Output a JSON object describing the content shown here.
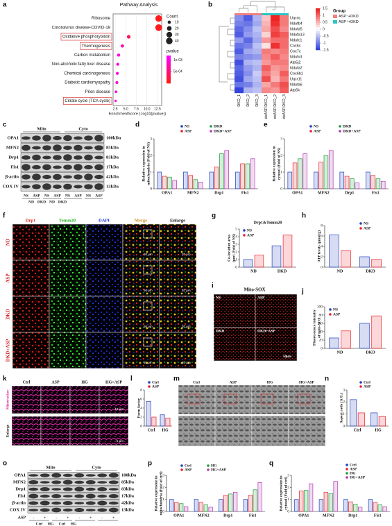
{
  "chart_data": [
    {
      "type": "dot",
      "title": "Pathway Analysis",
      "categories": [
        "Ribosome",
        "Coronavirus disease-COVID-19",
        "Oxidative phosphorylation",
        "Thermogenesis",
        "Carbon metabolism",
        "Non-alcoholic fatty liver disease",
        "Chemical carcinogenesis",
        "Diabetic cardiomyopathy",
        "Prion disease",
        "Citrate cycle (TCA cycle)"
      ],
      "values": [
        12.8,
        12.8,
        5.7,
        4.2,
        3.3,
        3.1,
        3.0,
        2.9,
        2.7,
        2.6
      ],
      "counts": [
        40,
        42,
        12,
        10,
        9,
        8,
        8,
        8,
        6,
        5
      ],
      "pvalues": [
        2e-05,
        2e-05,
        0.0003,
        0.0008,
        0.001,
        0.001,
        0.001,
        0.001,
        0.001,
        0.0011
      ],
      "highlight": [
        2,
        3,
        9
      ],
      "xlabel": "EnrichmentScore (-log10(pvalue))",
      "xlim": [
        2,
        13.5
      ],
      "xticks": [
        2.5,
        {
          "value": 5,
          "label": "5.0"
        },
        7.5,
        {
          "value": 10,
          "label": "10.0"
        },
        12.5
      ],
      "size_title": "Count",
      "size_ticks": [
        10,
        20,
        30,
        40
      ],
      "color_title": "pvalue",
      "clim": [
        0,
        0.0012
      ],
      "colors": [
        "#ff1a1a",
        "#ff00ff"
      ],
      "cticks": [
        {
          "value": 0.001,
          "label": "1e-03"
        },
        {
          "value": 0.0005,
          "label": "5e-04"
        }
      ]
    },
    {
      "type": "heatmap",
      "rows": [
        "Uqcrq",
        "Ndufb4",
        "Ndufa5",
        "Ndufa13",
        "Ndufc1",
        "Cox6c",
        "Cox7c",
        "Ndufv3",
        "Atp5j2",
        "Ndufa2",
        "Cox6b1",
        "Uqcr11",
        "Ndufa6",
        "Atp5k"
      ],
      "columns": [
        "DKD_1",
        "DKD_2",
        "DKD_3",
        "dxASP.DKD_1",
        "dxASP.DKD_2",
        "dxASP.DKD_3"
      ],
      "values": [
        [
          -0.9,
          -1.3,
          -0.6,
          0.4,
          1.5,
          0.9
        ],
        [
          -1.0,
          -1.1,
          -0.7,
          0.5,
          1.4,
          0.9
        ],
        [
          -1.2,
          -0.9,
          -0.5,
          0.6,
          1.2,
          0.8
        ],
        [
          -1.3,
          -0.8,
          -0.6,
          0.3,
          1.3,
          1.1
        ],
        [
          -0.8,
          -1.2,
          -0.7,
          0.7,
          1.0,
          1.0
        ],
        [
          -1.1,
          -1.0,
          -0.5,
          0.2,
          1.4,
          1.0
        ],
        [
          -1.3,
          -0.7,
          -0.6,
          0.9,
          0.8,
          0.9
        ],
        [
          -1.0,
          -0.9,
          -0.8,
          0.8,
          1.1,
          0.8
        ],
        [
          -1.4,
          -0.6,
          -0.5,
          0.7,
          0.9,
          0.9
        ],
        [
          -1.2,
          -0.8,
          -0.6,
          1.1,
          0.7,
          0.8
        ],
        [
          -1.3,
          -0.9,
          -0.4,
          0.9,
          0.6,
          1.1
        ],
        [
          -1.4,
          -0.7,
          -0.5,
          1.2,
          0.5,
          0.9
        ],
        [
          -1.1,
          -1.0,
          -0.6,
          0.6,
          0.9,
          1.2
        ],
        [
          -1.5,
          -0.6,
          -0.5,
          0.8,
          0.7,
          1.1
        ]
      ],
      "clim": [
        -1.5,
        1.5
      ],
      "cticks": [
        1.5,
        1,
        0.5,
        0,
        -0.5,
        -1,
        -1.5
      ],
      "colors": [
        "#3344dd",
        "#ffffff",
        "#ee2222"
      ],
      "group_title": "Group",
      "groups": [
        {
          "name": "ASP⁻+DKD",
          "color": "#f08080"
        },
        {
          "name": "ASP⁺+DKD",
          "color": "#2ec4c4"
        }
      ],
      "column_groups": [
        0,
        0,
        0,
        1,
        1,
        1
      ]
    },
    {
      "type": "bar",
      "ylabel": [
        "Relative expression in",
        "mitochondria (Fold of NS)"
      ],
      "categories": [
        "OPA1",
        "MFN2",
        "Drp1",
        "Fis1"
      ],
      "series": [
        {
          "name": "NS",
          "color": "#1f3fbf",
          "values": [
            1,
            1,
            1,
            1
          ]
        },
        {
          "name": "ASP",
          "color": "#e8202a",
          "values": [
            0.75,
            0.8,
            1.3,
            1.5
          ]
        },
        {
          "name": "DKD",
          "color": "#1a9a3a",
          "values": [
            0.7,
            0.55,
            2.1,
            1.5
          ]
        },
        {
          "name": "DKD+ASP",
          "color": "#b03ab0",
          "values": [
            0.5,
            0.4,
            2.3,
            1.8
          ]
        }
      ],
      "ylim": [
        0,
        3
      ],
      "yticks": [
        0,
        1,
        2,
        3
      ]
    },
    {
      "type": "bar",
      "ylabel": [
        "Relative expression in",
        "cytosol (Fold of NS)"
      ],
      "categories": [
        "OPA1",
        "MFN2",
        "Drp1",
        "Fis1"
      ],
      "series": [
        {
          "name": "NS",
          "color": "#1f3fbf",
          "values": [
            1,
            1,
            1,
            1
          ]
        },
        {
          "name": "ASP",
          "color": "#e8202a",
          "values": [
            1.55,
            1.6,
            0.75,
            0.8
          ]
        },
        {
          "name": "DKD",
          "color": "#1a9a3a",
          "values": [
            1.8,
            2.0,
            0.6,
            0.6
          ]
        },
        {
          "name": "DKD+ASP",
          "color": "#b03ab0",
          "values": [
            2.1,
            2.3,
            0.35,
            0.45
          ]
        }
      ],
      "ylim": [
        0,
        3
      ],
      "yticks": [
        0,
        1,
        2,
        3
      ]
    },
    {
      "type": "bar",
      "title": "Drp1&Tomm20",
      "ylabel": [
        "Co-location area",
        "(μm², Fold of NS)"
      ],
      "categories": [
        "ND",
        "DKD"
      ],
      "series": [
        {
          "name": "NS",
          "color": "#1f3fbf",
          "values": [
            1,
            2.8
          ]
        },
        {
          "name": "ASP",
          "color": "#e8202a",
          "values": [
            1.6,
            4.2
          ]
        }
      ],
      "ylim": [
        0,
        5
      ],
      "yticks": [
        0,
        1,
        2,
        3,
        4,
        5
      ]
    },
    {
      "type": "bar",
      "ylabel": [
        "ATP levels (μmol/g)"
      ],
      "categories": [
        "ND",
        "DKD"
      ],
      "series": [
        {
          "name": "NS",
          "color": "#1f3fbf",
          "values": [
            6.2,
            2.0
          ]
        },
        {
          "name": "ASP",
          "color": "#e8202a",
          "values": [
            3.2,
            1.5
          ]
        }
      ],
      "ylim": [
        0,
        8
      ],
      "yticks": [
        0,
        2,
        4,
        6,
        8
      ]
    },
    {
      "type": "bar",
      "ylabel": [
        "Fluorescence intensity",
        "of mito-SOX"
      ],
      "categories": [
        "ND",
        "DKD"
      ],
      "series": [
        {
          "name": "NS",
          "color": "#1f3fbf",
          "values": [
            25,
            60
          ]
        },
        {
          "name": "ASP",
          "color": "#e8202a",
          "values": [
            42,
            78
          ]
        }
      ],
      "ylim": [
        0,
        100
      ],
      "yticks": [
        0,
        20,
        40,
        60,
        80,
        100
      ]
    },
    {
      "type": "bar",
      "ylabel": [
        "Form factor"
      ],
      "categories": [
        "Ctrl",
        "HG"
      ],
      "series": [
        {
          "name": "Ctrl",
          "color": "#1f3fbf",
          "values": [
            5.5,
            2.5
          ]
        },
        {
          "name": "ASP",
          "color": "#e8202a",
          "values": [
            2,
            1.8
          ]
        }
      ],
      "ylim": [
        0,
        8
      ],
      "yticks": [
        0,
        2,
        4,
        6,
        8
      ]
    },
    {
      "type": "bar",
      "ylabel": [
        "Aspect ratio (A.U.)"
      ],
      "categories": [
        "Ctrl",
        "HG"
      ],
      "series": [
        {
          "name": "Ctrl",
          "color": "#1f3fbf",
          "values": [
            2.2,
            1.1
          ]
        },
        {
          "name": "ASP",
          "color": "#e8202a",
          "values": [
            1.1,
            0.8
          ]
        }
      ],
      "ylim": [
        0,
        3
      ],
      "yticks": [
        0,
        1,
        2,
        3
      ]
    },
    {
      "type": "bar",
      "ylabel": [
        "Relative expression in",
        "mitochondria (Fold of ctrl)"
      ],
      "categories": [
        "OPA1",
        "MFN2",
        "Drp1",
        "Fis1"
      ],
      "series": [
        {
          "name": "Ctrl",
          "color": "#1f3fbf",
          "values": [
            1,
            1,
            1,
            1
          ]
        },
        {
          "name": "ASP",
          "color": "#e8202a",
          "values": [
            0.75,
            0.75,
            1.35,
            1.35
          ]
        },
        {
          "name": "HG",
          "color": "#1a9a3a",
          "values": [
            0.65,
            0.55,
            1.45,
            1.8
          ]
        },
        {
          "name": "HG+ASP",
          "color": "#b03ab0",
          "values": [
            0.4,
            0.35,
            1.6,
            2.4
          ]
        }
      ],
      "ylim": [
        0,
        3
      ],
      "yticks": [
        0,
        1,
        2,
        3
      ]
    },
    {
      "type": "bar",
      "ylabel": [
        "Relative expression in",
        "cytosol (Fold of ctrl)"
      ],
      "categories": [
        "OPA1",
        "MFN2",
        "Drp1",
        "Fis1"
      ],
      "series": [
        {
          "name": "Ctrl",
          "color": "#1f3fbf",
          "values": [
            1,
            1,
            1,
            1
          ]
        },
        {
          "name": "ASP",
          "color": "#e8202a",
          "values": [
            1.7,
            1.6,
            0.8,
            0.75
          ]
        },
        {
          "name": "HG",
          "color": "#1a9a3a",
          "values": [
            1.75,
            1.5,
            0.6,
            0.55
          ]
        },
        {
          "name": "HG+ASP",
          "color": "#b03ab0",
          "values": [
            2.3,
            2.5,
            0.35,
            0.4
          ]
        }
      ],
      "ylim": [
        0,
        3
      ],
      "yticks": [
        0,
        1,
        2,
        3
      ]
    }
  ],
  "figure": {
    "panel_letters": [
      "a",
      "b",
      "c",
      "d",
      "e",
      "f",
      "g",
      "h",
      "i",
      "j",
      "k",
      "l",
      "m",
      "n",
      "o",
      "p",
      "q"
    ],
    "blot_c": {
      "headers": [
        "Mito",
        "Cyto"
      ],
      "proteins": [
        "OPA1",
        "MFN2",
        "Drp1",
        "Fis1",
        "β-actin",
        "COX IV"
      ],
      "sizes": [
        "100kDa",
        "85kDa",
        "83kDa",
        "17kDa",
        "42kDa",
        "13kDa"
      ],
      "lanes": [
        "NS",
        "ASP",
        "NS",
        "ASP",
        "NS",
        "ASP",
        "NS",
        "ASP"
      ],
      "groups": [
        "ND",
        "DKD",
        "ND",
        "DKD"
      ]
    },
    "images_f": {
      "columns": [
        "Drp1",
        "Tomm20",
        "DAPI",
        "Merge",
        "Enlarge"
      ],
      "rows": [
        "ND",
        "ASP",
        "DKD",
        "DKD+ASP"
      ],
      "scale_labels": [
        "50 μm",
        "20 μm"
      ]
    },
    "images_i": {
      "title": "Mito-SOX",
      "labels": [
        "NS",
        "ASP",
        "DKD",
        "DKD+ASP"
      ],
      "scale": "50μm"
    },
    "images_k": {
      "columns": [
        "Ctrl",
        "ASP",
        "HG",
        "HG+ASP"
      ],
      "rows": [
        "Mitotracker",
        "Enlarge"
      ],
      "scale_labels": [
        "10 μm",
        "5 μm"
      ]
    },
    "images_m": {
      "columns": [
        "Ctrl",
        "ASP",
        "HG",
        "HG+ASP"
      ]
    },
    "blot_o": {
      "headers": [
        "Mito",
        "Cyto"
      ],
      "proteins": [
        "OPA1",
        "MFN2",
        "Drp1",
        "Fis1",
        "β-actin",
        "COX IV"
      ],
      "sizes": [
        "100kDa",
        "85kDa",
        "83kDa",
        "17kDa",
        "42kDa",
        "13kDa"
      ],
      "treatment": "ASP",
      "lanes": [
        "-",
        "+",
        "-",
        "+",
        "-",
        "+",
        "-",
        "+"
      ],
      "groups": [
        "Ctrl",
        "HG",
        "Ctrl",
        "HG"
      ]
    }
  }
}
